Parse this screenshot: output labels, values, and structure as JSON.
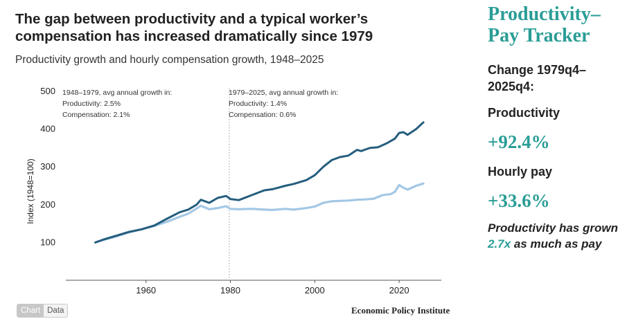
{
  "chart_data": {
    "type": "line",
    "title": "The gap between productivity and a typical worker’s compensation has increased dramatically since 1979",
    "subtitle": "Productivity growth and hourly compensation growth, 1948–2025",
    "ylabel": "Index (1948=100)",
    "xlabel": "",
    "xlim": [
      1941,
      2030
    ],
    "ylim": [
      0,
      500
    ],
    "x_ticks": [
      1960,
      1980,
      2000,
      2020
    ],
    "y_ticks": [
      100,
      200,
      300,
      400,
      500
    ],
    "reference_line": {
      "x": 1979.75,
      "style": "dotted"
    },
    "annotations": [
      {
        "heading": "1948–1979, avg annual growth in:",
        "lines": [
          "Productivity: 2.5%",
          "Compensation: 2.1%"
        ]
      },
      {
        "heading": "1979–2025, avg annual growth in:",
        "lines": [
          "Productivity: 1.4%",
          "Compensation: 0.6%"
        ]
      }
    ],
    "series": [
      {
        "key": "productivity",
        "color": "#255d7e",
        "x": [
          1948,
          1950,
          1953,
          1956,
          1959,
          1962,
          1965,
          1968,
          1970,
          1972,
          1973,
          1975,
          1977,
          1979,
          1980,
          1982,
          1985,
          1988,
          1990,
          1993,
          1995,
          1998,
          2000,
          2002,
          2004,
          2006,
          2008,
          2010,
          2011,
          2013,
          2015,
          2017,
          2019,
          2020,
          2021,
          2022,
          2024,
          2025.75
        ],
        "y": [
          100,
          108,
          118,
          128,
          135,
          145,
          163,
          180,
          187,
          200,
          213,
          205,
          218,
          223,
          215,
          212,
          225,
          238,
          241,
          250,
          255,
          265,
          278,
          300,
          318,
          326,
          330,
          345,
          342,
          350,
          352,
          362,
          375,
          390,
          392,
          385,
          400,
          418
        ]
      },
      {
        "key": "compensation",
        "color": "#a3c7e4",
        "x": [
          1948,
          1950,
          1953,
          1956,
          1959,
          1962,
          1965,
          1968,
          1970,
          1972,
          1973,
          1975,
          1977,
          1979,
          1980,
          1982,
          1985,
          1988,
          1990,
          1993,
          1995,
          1998,
          2000,
          2002,
          2004,
          2006,
          2008,
          2010,
          2012,
          2014,
          2016,
          2018,
          2019,
          2020,
          2021,
          2022,
          2024,
          2025.75
        ],
        "y": [
          100,
          107,
          116,
          127,
          135,
          144,
          155,
          168,
          176,
          190,
          197,
          188,
          191,
          196,
          189,
          188,
          189,
          187,
          186,
          189,
          187,
          191,
          195,
          205,
          209,
          210,
          211,
          213,
          214,
          216,
          225,
          228,
          234,
          252,
          245,
          240,
          250,
          256
        ]
      }
    ]
  },
  "tracker": {
    "title": "Productivity–Pay Tracker",
    "period": "Change 1979q4–2025q4:",
    "productivity_label": "Productivity",
    "productivity_value": "+92.4%",
    "pay_label": "Hourly pay",
    "pay_value": "+33.6%",
    "summary_before": "Productivity has grown ",
    "summary_ratio": "2.7x",
    "summary_after": " as much as pay"
  },
  "toggle": {
    "chart_label": "Chart",
    "data_label": "Data"
  },
  "source": "Economic Policy Institute"
}
